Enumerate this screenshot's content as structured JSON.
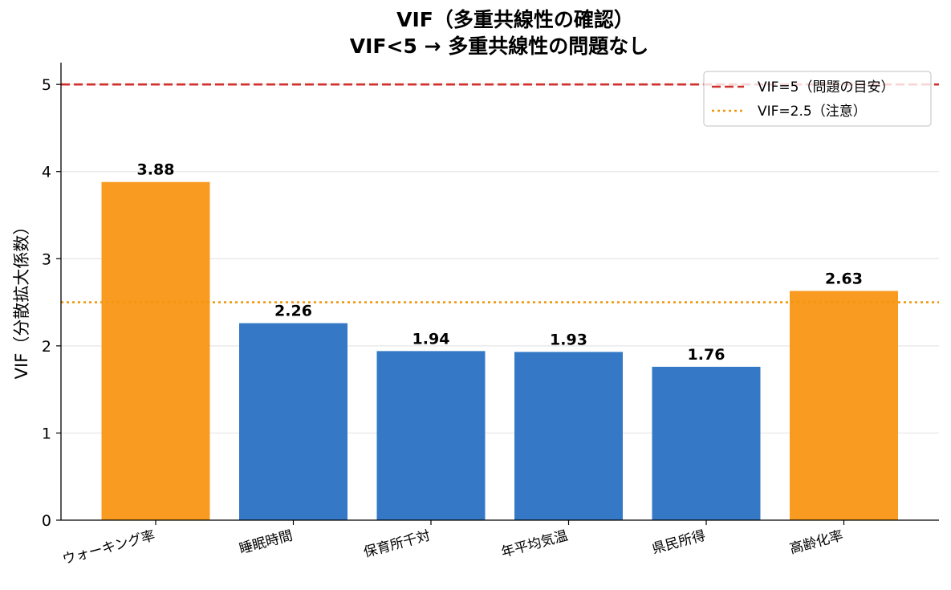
{
  "chart_data": {
    "type": "bar",
    "title": [
      "VIF（多重共線性の確認）",
      "VIF<5 → 多重共線性の問題なし"
    ],
    "xlabel": "",
    "ylabel": "VIF（分散拡大係数）",
    "categories": [
      "ウォーキング率",
      "睡眠時間",
      "保育所千対",
      "年平均気温",
      "県民所得",
      "高齢化率"
    ],
    "values": [
      3.88,
      2.26,
      1.94,
      1.93,
      1.76,
      2.63
    ],
    "value_labels": [
      "3.88",
      "2.26",
      "1.94",
      "1.93",
      "1.76",
      "2.63"
    ],
    "bar_colors": [
      "#f99b21",
      "#3478c6",
      "#3478c6",
      "#3478c6",
      "#3478c6",
      "#f99b21"
    ],
    "ylim": [
      0,
      5.25
    ],
    "yticks": [
      0,
      1,
      2,
      3,
      4,
      5
    ],
    "ytick_labels": [
      "0",
      "1",
      "2",
      "3",
      "4",
      "5"
    ],
    "grid": "y",
    "reference_lines": [
      {
        "value": 5,
        "label": "VIF=5（問題の目安）",
        "color": "#d0302c",
        "style": "dashed"
      },
      {
        "value": 2.5,
        "label": "VIF=2.5（注意）",
        "color": "#f0980f",
        "style": "dotted"
      }
    ],
    "legend_position": "top-right"
  }
}
